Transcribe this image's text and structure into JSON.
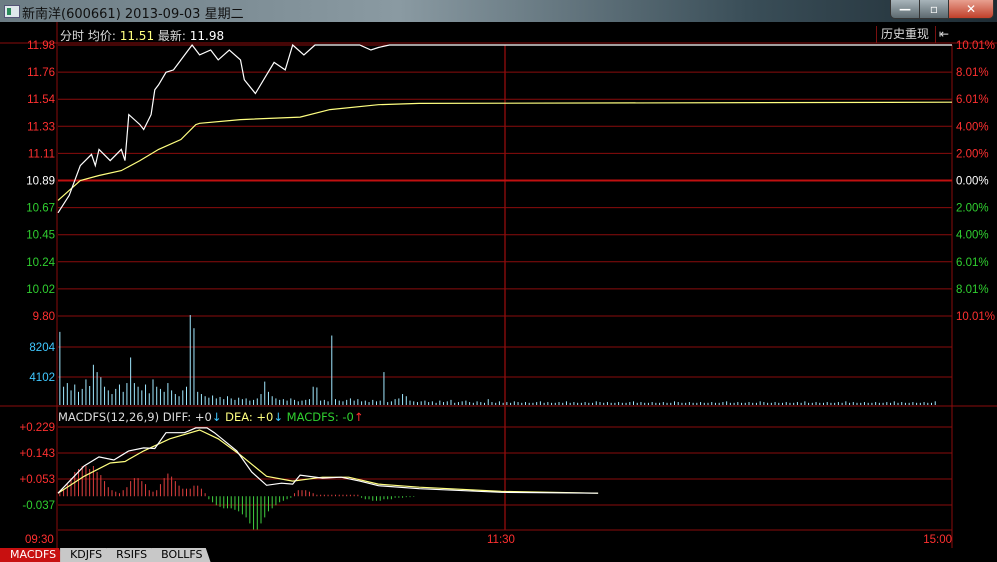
{
  "window": {
    "title": "新南洋(600661) 2013-09-03 星期二",
    "minimize": "—",
    "maximize": "▫",
    "close": "✕"
  },
  "header": {
    "mode": "分时",
    "avg_label": "均价:",
    "avg_value": "11.51",
    "last_label": "最新:",
    "last_value": "11.98",
    "history_button": "历史重现",
    "history_icon": "⇤"
  },
  "colors": {
    "up": "#ff3030",
    "down": "#30d030",
    "grid": "#8a0c0c",
    "price_line": "#ffffff",
    "avg_line": "#ffff80",
    "volume": "#a0e8ff",
    "neutral": "#ffffff"
  },
  "chart_data": [
    {
      "type": "line",
      "name_price": "price",
      "ylim": [
        9.8,
        11.98
      ],
      "prev_close": 10.89,
      "y_ticks_left": [
        "11.98",
        "11.76",
        "11.54",
        "11.33",
        "11.11",
        "10.89",
        "10.67",
        "10.45",
        "10.24",
        "10.02",
        "9.80"
      ],
      "y_ticks_right": [
        "10.01%",
        "8.01%",
        "6.01%",
        "4.00%",
        "2.00%",
        "0.00%",
        "2.00%",
        "4.00%",
        "6.01%",
        "8.01%",
        "10.01%"
      ],
      "x_ticks": [
        "09:30",
        "11:30",
        "15:00"
      ],
      "price": [
        [
          "09:30",
          10.63
        ],
        [
          "09:33",
          10.77
        ],
        [
          "09:36",
          11.01
        ],
        [
          "09:39",
          11.1
        ],
        [
          "09:40",
          11.01
        ],
        [
          "09:41",
          11.14
        ],
        [
          "09:44",
          11.05
        ],
        [
          "09:47",
          11.14
        ],
        [
          "09:48",
          11.05
        ],
        [
          "09:49",
          11.42
        ],
        [
          "09:52",
          11.34
        ],
        [
          "09:53",
          11.3
        ],
        [
          "09:55",
          11.42
        ],
        [
          "09:56",
          11.62
        ],
        [
          "09:57",
          11.66
        ],
        [
          "09:59",
          11.76
        ],
        [
          "10:01",
          11.78
        ],
        [
          "10:04",
          11.9
        ],
        [
          "10:06",
          11.98
        ],
        [
          "10:08",
          11.9
        ],
        [
          "10:11",
          11.94
        ],
        [
          "10:13",
          11.86
        ],
        [
          "10:16",
          11.94
        ],
        [
          "10:19",
          11.86
        ],
        [
          "10:20",
          11.7
        ],
        [
          "10:23",
          11.59
        ],
        [
          "10:26",
          11.74
        ],
        [
          "10:28",
          11.84
        ],
        [
          "10:31",
          11.78
        ],
        [
          "10:33",
          11.98
        ],
        [
          "10:36",
          11.9
        ],
        [
          "10:39",
          11.98
        ],
        [
          "10:43",
          11.98
        ],
        [
          "10:51",
          11.98
        ],
        [
          "10:54",
          11.94
        ],
        [
          "10:56",
          11.96
        ],
        [
          "10:59",
          11.98
        ],
        [
          "15:00",
          11.98
        ]
      ],
      "avg": [
        [
          "09:30",
          10.73
        ],
        [
          "09:36",
          10.89
        ],
        [
          "09:41",
          10.93
        ],
        [
          "09:47",
          10.97
        ],
        [
          "09:52",
          11.05
        ],
        [
          "09:57",
          11.14
        ],
        [
          "10:03",
          11.22
        ],
        [
          "10:07",
          11.34
        ],
        [
          "10:08",
          11.35
        ],
        [
          "10:19",
          11.38
        ],
        [
          "10:35",
          11.4
        ],
        [
          "10:43",
          11.46
        ],
        [
          "10:56",
          11.5
        ],
        [
          "11:07",
          11.51
        ],
        [
          "15:00",
          11.52
        ]
      ]
    },
    {
      "type": "bar",
      "name": "volume",
      "y_ticks": [
        "8204",
        "4102"
      ],
      "ylim": [
        0,
        12306
      ],
      "morning": [
        10000,
        2500,
        3000,
        2000,
        2800,
        1800,
        2200,
        3500,
        2600,
        5500,
        4500,
        3800,
        2500,
        2000,
        1500,
        2200,
        2800,
        1800,
        3000,
        6500,
        3000,
        2500,
        2000,
        2800,
        1600,
        3500,
        2500,
        2200,
        1800,
        3000,
        2000,
        1500,
        1200,
        2000,
        2500,
        12300,
        10500,
        1800,
        1500,
        1200,
        1000,
        1300,
        900,
        1100,
        800,
        1200,
        900,
        700,
        1000,
        800,
        900,
        600,
        700,
        900,
        1500,
        3200,
        1800,
        1200,
        900,
        700,
        800,
        600,
        900,
        700,
        500,
        600,
        700,
        800,
        2500,
        2400,
        600,
        700,
        500,
        9500,
        800,
        600,
        500,
        700,
        900,
        600,
        800,
        500,
        600,
        400,
        700,
        500,
        600,
        4500,
        400,
        500,
        800,
        900,
        1500,
        1200,
        600,
        500,
        400,
        500,
        600,
        400,
        500,
        300,
        600,
        400,
        500,
        700,
        300,
        400,
        500,
        600,
        400,
        300,
        500,
        400,
        300,
        800
      ],
      "afternoon": [
        400,
        300,
        500,
        300,
        400,
        300,
        500,
        400,
        300,
        400,
        300,
        300,
        400,
        500,
        300,
        400,
        300,
        300,
        400,
        300,
        500,
        300,
        400,
        300,
        300,
        400,
        300,
        300,
        500,
        400,
        300,
        400,
        300,
        300,
        400,
        300,
        300,
        400,
        500,
        300,
        400,
        300,
        300,
        400,
        300,
        300,
        400,
        300,
        300,
        500,
        400,
        300,
        300,
        400,
        300,
        300,
        400,
        300,
        300,
        400,
        300,
        300,
        400,
        500,
        300,
        300,
        400,
        300,
        300,
        400,
        300,
        300,
        500,
        400,
        300,
        300,
        400,
        300,
        300,
        400,
        300,
        300,
        400,
        300,
        500,
        300,
        300,
        400,
        300,
        300,
        400,
        300,
        300,
        400,
        300,
        500,
        300,
        400,
        300,
        300,
        400,
        300,
        300,
        400,
        300,
        300,
        400,
        300,
        500,
        300,
        400,
        300,
        300,
        400,
        300,
        300,
        400,
        300,
        300,
        500
      ]
    },
    {
      "type": "line",
      "name": "MACDFS",
      "ylim": [
        -0.113,
        0.229
      ],
      "y_ticks": [
        "+0.229",
        "+0.143",
        "+0.053",
        "-0.037"
      ],
      "diff": [
        [
          "09:30",
          0.01
        ],
        [
          "09:37",
          0.1
        ],
        [
          "09:41",
          0.13
        ],
        [
          "09:45",
          0.12
        ],
        [
          "09:49",
          0.15
        ],
        [
          "09:53",
          0.16
        ],
        [
          "09:56",
          0.158
        ],
        [
          "09:59",
          0.21
        ],
        [
          "10:04",
          0.21
        ],
        [
          "10:07",
          0.226
        ],
        [
          "10:10",
          0.226
        ],
        [
          "10:12",
          0.21
        ],
        [
          "10:18",
          0.15
        ],
        [
          "10:22",
          0.08
        ],
        [
          "10:26",
          0.036
        ],
        [
          "10:30",
          0.043
        ],
        [
          "10:33",
          0.04
        ],
        [
          "10:35",
          0.07
        ],
        [
          "10:41",
          0.06
        ],
        [
          "10:46",
          0.063
        ],
        [
          "10:51",
          0.05
        ],
        [
          "10:56",
          0.035
        ],
        [
          "11:07",
          0.025
        ],
        [
          "11:29",
          0.013
        ],
        [
          "13:25",
          0.01
        ]
      ],
      "dea": [
        [
          "09:30",
          0.01
        ],
        [
          "09:37",
          0.066
        ],
        [
          "09:44",
          0.11
        ],
        [
          "09:48",
          0.115
        ],
        [
          "09:53",
          0.15
        ],
        [
          "10:00",
          0.19
        ],
        [
          "10:08",
          0.219
        ],
        [
          "10:13",
          0.19
        ],
        [
          "10:19",
          0.136
        ],
        [
          "10:26",
          0.066
        ],
        [
          "10:33",
          0.05
        ],
        [
          "10:41",
          0.063
        ],
        [
          "10:48",
          0.063
        ],
        [
          "10:56",
          0.04
        ],
        [
          "11:07",
          0.03
        ],
        [
          "11:29",
          0.016
        ],
        [
          "13:25",
          0.01
        ]
      ],
      "hist": [
        0.01,
        0.02,
        0.04,
        0.06,
        0.08,
        0.09,
        0.1,
        0.1,
        0.09,
        0.1,
        0.08,
        0.07,
        0.05,
        0.03,
        0.02,
        0.015,
        0.01,
        0.02,
        0.03,
        0.05,
        0.06,
        0.06,
        0.05,
        0.04,
        0.02,
        0.015,
        0.02,
        0.04,
        0.06,
        0.075,
        0.065,
        0.05,
        0.035,
        0.025,
        0.025,
        0.025,
        0.035,
        0.035,
        0.025,
        0.01,
        -0.01,
        -0.02,
        -0.03,
        -0.035,
        -0.04,
        -0.04,
        -0.04,
        -0.045,
        -0.05,
        -0.06,
        -0.07,
        -0.09,
        -0.11,
        -0.11,
        -0.09,
        -0.07,
        -0.05,
        -0.04,
        -0.03,
        -0.02,
        -0.015,
        -0.01,
        -0.005,
        0.01,
        0.02,
        0.02,
        0.02,
        0.015,
        0.01,
        0.005,
        0.005,
        0.005,
        0.005,
        0.005,
        0.005,
        0.005,
        0.005,
        0.005,
        0.005,
        0.005,
        0.005,
        -0.005,
        -0.01,
        -0.01,
        -0.015,
        -0.015,
        -0.015,
        -0.01,
        -0.01,
        -0.01,
        -0.005,
        -0.005,
        -0.005,
        -0.003,
        -0.003,
        -0.002
      ]
    }
  ],
  "macd_legend": {
    "name": "MACDFS(12,26,9)",
    "diff": "DIFF: +0",
    "diff_arrow": "↓",
    "dea": "DEA: +0",
    "dea_arrow": "↓",
    "macd": "MACDFS: -0",
    "macd_arrow": "↑"
  },
  "tabs": [
    {
      "label": "MACDFS",
      "active": true
    },
    {
      "label": "KDJFS"
    },
    {
      "label": "RSIFS"
    },
    {
      "label": "BOLLFS"
    }
  ]
}
